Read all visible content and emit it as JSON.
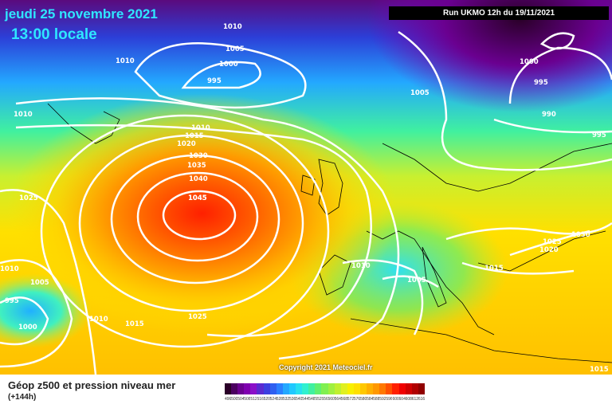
{
  "header": {
    "date_line": "jeudi 25 novembre 2021",
    "time_line": "13:00 locale",
    "run_info": "Run UKMO 12h du 19/11/2021"
  },
  "footer": {
    "caption": "Géop z500 et pression niveau mer",
    "lead": "(+144h)",
    "copyright": "Copyright 2021 Meteociel.fr"
  },
  "scale_values": [
    "496",
    "500",
    "504",
    "508",
    "512",
    "516",
    "520",
    "524",
    "528",
    "532",
    "536",
    "540",
    "544",
    "548",
    "552",
    "556",
    "560",
    "564",
    "568",
    "572",
    "576",
    "580",
    "584",
    "588",
    "592",
    "596",
    "600",
    "604",
    "608",
    "612",
    "616"
  ],
  "scale_colors": [
    "#2a0028",
    "#4b0060",
    "#6a0090",
    "#7f00b0",
    "#8a10c8",
    "#5a2ad0",
    "#3c3fe0",
    "#2e5ff0",
    "#2a80ff",
    "#23a8ff",
    "#20c8ff",
    "#28e0f0",
    "#30f0d0",
    "#40f0a0",
    "#60f070",
    "#80f050",
    "#a0f040",
    "#c0f030",
    "#e0f020",
    "#f8f000",
    "#ffe000",
    "#ffc800",
    "#ffb000",
    "#ff9800",
    "#ff7800",
    "#ff5000",
    "#ff2000",
    "#f00000",
    "#d00000",
    "#b00000",
    "#900000"
  ],
  "isobar_labels": [
    "1010",
    "1005",
    "1000",
    "995",
    "1010",
    "1010",
    "1005",
    "1010",
    "1015",
    "1020",
    "1030",
    "1035",
    "1040",
    "1045",
    "1025",
    "1025",
    "1010",
    "1005",
    "995",
    "1000",
    "1010",
    "1015",
    "1000",
    "995",
    "990",
    "995",
    "1025",
    "1030",
    "1020",
    "1015",
    "1010",
    "1005",
    "1015"
  ],
  "high_label": "1045"
}
